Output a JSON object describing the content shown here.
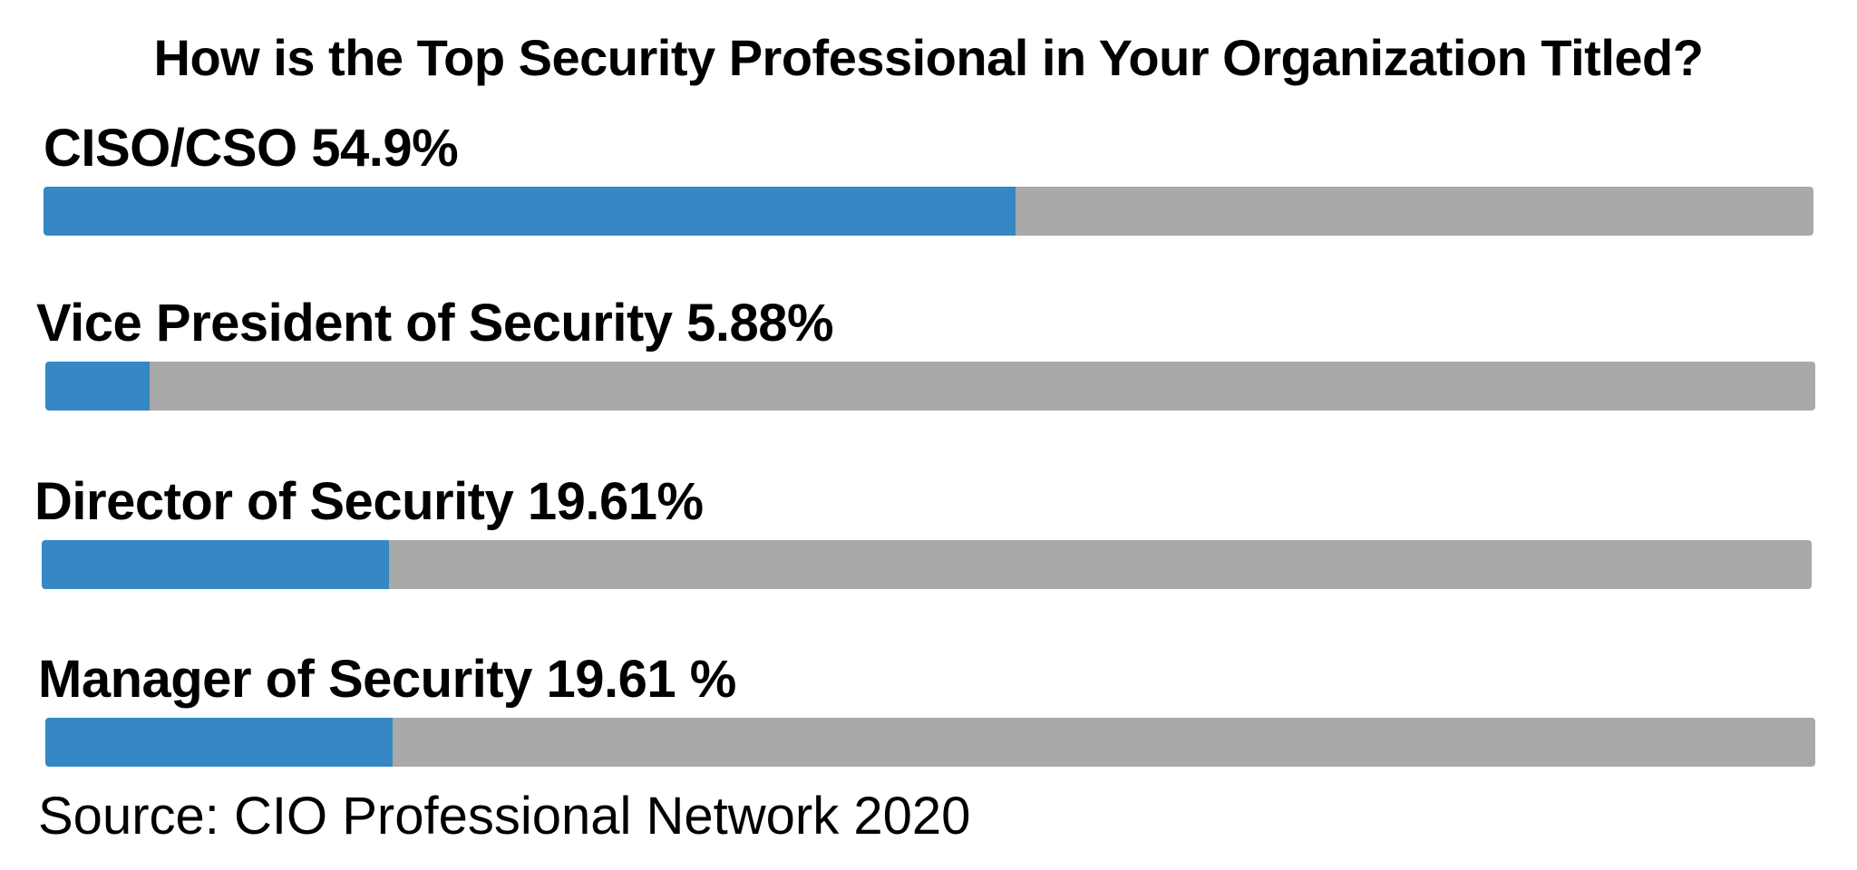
{
  "chart_data": {
    "type": "bar",
    "orientation": "horizontal",
    "title": "How is the Top Security Professional in Your Organization Titled?",
    "categories": [
      "CISO/CSO",
      "Vice President of Security",
      "Director of Security",
      "Manager of Security"
    ],
    "values": [
      54.9,
      5.88,
      19.61,
      19.61
    ],
    "labels": [
      "CISO/CSO 54.9%",
      "Vice President of Security 5.88%",
      "Director of Security 19.61%",
      "Manager of Security 19.61 %"
    ],
    "unit": "%",
    "xlim": [
      0,
      100
    ],
    "grid": false,
    "legend": "none",
    "colors": {
      "fill": "#3588c4",
      "track": "#a8a9a8"
    },
    "source": "Source: CIO Professional Network 2020"
  }
}
